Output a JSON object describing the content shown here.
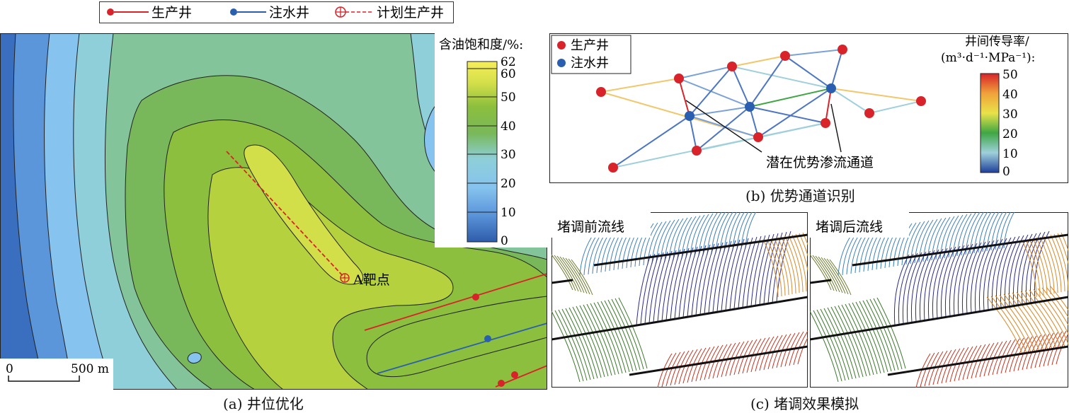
{
  "legend_top": {
    "producer": "生产井",
    "injector": "注水井",
    "planned": "计划生产井"
  },
  "panel_a": {
    "caption": "(a) 井位优化",
    "colorbar_title": "含油饱和度/%:",
    "colorbar_ticks": [
      "62",
      "60",
      "50",
      "40",
      "30",
      "20",
      "10",
      "0"
    ],
    "target_label": "A靶点",
    "scale_zero": "0",
    "scale_label": "500 m",
    "colors": [
      "#2e5caa",
      "#5b95da",
      "#86c3ee",
      "#8ecfd9",
      "#84c49a",
      "#79b85a",
      "#8cbf3e",
      "#b5d23e",
      "#d3df49"
    ]
  },
  "panel_b": {
    "caption": "(b) 优势通道识别",
    "legend_producer": "生产井",
    "legend_injector": "注水井",
    "colorbar_title_1": "井间传导率/",
    "colorbar_title_2": "(m³·d⁻¹·MPa⁻¹):",
    "colorbar_ticks": [
      "50",
      "40",
      "30",
      "20",
      "10",
      "0"
    ],
    "annotation": "潜在优势渗流通道"
  },
  "panel_c": {
    "caption": "(c) 堵调效果模拟",
    "before_label": "堵调前流线",
    "after_label": "堵调后流线"
  }
}
